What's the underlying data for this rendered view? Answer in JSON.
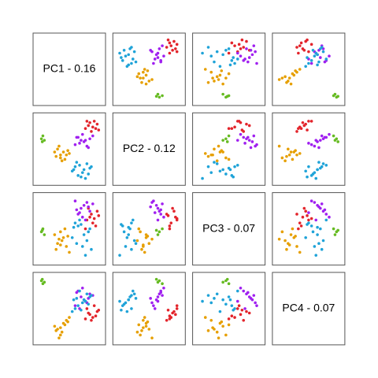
{
  "chart_data": {
    "type": "scatter-matrix",
    "variables": [
      "PC1 - 0.16",
      "PC2 - 0.12",
      "PC3 - 0.07",
      "PC4 - 0.07"
    ],
    "ranges": [
      [
        -1.1,
        1.1
      ],
      [
        -1.1,
        1.1
      ],
      [
        -1.1,
        1.1
      ],
      [
        -1.1,
        1.1
      ]
    ],
    "groups": [
      {
        "color": "#66bb22",
        "points": [
          [
            -0.95,
            0.35,
            -0.1,
            0.95
          ],
          [
            -0.9,
            0.45,
            0.0,
            0.85
          ],
          [
            -0.85,
            0.3,
            -0.2,
            0.9
          ],
          [
            -0.92,
            0.25,
            -0.05,
            1.0
          ]
        ]
      },
      {
        "color": "#e3242b",
        "points": [
          [
            0.7,
            0.9,
            0.4,
            -0.2
          ],
          [
            0.8,
            0.75,
            0.2,
            -0.3
          ],
          [
            0.95,
            0.85,
            0.6,
            -0.1
          ],
          [
            0.6,
            0.95,
            0.3,
            0.0
          ],
          [
            0.75,
            0.6,
            0.5,
            -0.4
          ],
          [
            0.9,
            0.7,
            0.1,
            -0.25
          ],
          [
            0.65,
            0.8,
            0.7,
            -0.15
          ],
          [
            0.85,
            0.95,
            0.35,
            0.1
          ],
          [
            0.55,
            0.7,
            0.0,
            -0.35
          ],
          [
            1.0,
            0.65,
            0.45,
            -0.05
          ]
        ]
      },
      {
        "color": "#a020f0",
        "points": [
          [
            0.4,
            0.3,
            0.7,
            0.4
          ],
          [
            0.6,
            0.1,
            0.9,
            0.2
          ],
          [
            0.3,
            0.4,
            0.5,
            0.6
          ],
          [
            0.5,
            0.25,
            0.8,
            0.3
          ],
          [
            0.7,
            0.35,
            0.6,
            0.5
          ],
          [
            0.2,
            0.15,
            0.95,
            0.1
          ],
          [
            0.45,
            0.5,
            0.4,
            0.7
          ],
          [
            0.65,
            0.05,
            0.75,
            0.35
          ],
          [
            0.35,
            0.2,
            0.55,
            0.0
          ],
          [
            0.8,
            0.45,
            0.85,
            0.45
          ],
          [
            0.55,
            0.3,
            0.3,
            0.25
          ],
          [
            0.25,
            0.4,
            0.65,
            0.55
          ]
        ]
      },
      {
        "color": "#e69f00",
        "points": [
          [
            -0.2,
            -0.1,
            -0.3,
            -0.5
          ],
          [
            -0.4,
            0.0,
            -0.5,
            -0.7
          ],
          [
            -0.3,
            -0.3,
            -0.1,
            -0.9
          ],
          [
            -0.1,
            -0.2,
            -0.6,
            -0.4
          ],
          [
            -0.5,
            -0.1,
            -0.2,
            -0.6
          ],
          [
            -0.25,
            -0.4,
            -0.4,
            -0.8
          ],
          [
            0.0,
            -0.15,
            -0.8,
            -0.3
          ],
          [
            -0.35,
            0.1,
            -0.35,
            -1.0
          ],
          [
            -0.15,
            -0.35,
            0.0,
            -0.55
          ],
          [
            -0.45,
            -0.25,
            -0.7,
            -0.75
          ],
          [
            -0.05,
            -0.05,
            -0.25,
            -0.45
          ],
          [
            -0.3,
            -0.2,
            -0.55,
            -0.65
          ]
        ]
      },
      {
        "color": "#1fa3d8",
        "points": [
          [
            0.5,
            -0.7,
            -0.2,
            0.3
          ],
          [
            0.3,
            -0.9,
            0.1,
            0.1
          ],
          [
            0.6,
            -0.5,
            -0.4,
            0.5
          ],
          [
            0.2,
            -0.6,
            0.2,
            0.0
          ],
          [
            0.45,
            -0.8,
            -0.6,
            0.2
          ],
          [
            0.7,
            -0.65,
            0.0,
            0.4
          ],
          [
            0.1,
            -0.75,
            -0.3,
            -0.1
          ],
          [
            0.55,
            -1.0,
            -0.9,
            0.25
          ],
          [
            0.35,
            -0.55,
            0.3,
            0.6
          ],
          [
            0.65,
            -0.85,
            -0.1,
            0.15
          ],
          [
            0.25,
            -0.45,
            -0.5,
            0.35
          ],
          [
            0.4,
            -0.95,
            0.15,
            -0.05
          ],
          [
            0.75,
            -0.6,
            -0.7,
            0.45
          ],
          [
            0.15,
            -0.7,
            0.05,
            0.3
          ]
        ]
      }
    ]
  }
}
